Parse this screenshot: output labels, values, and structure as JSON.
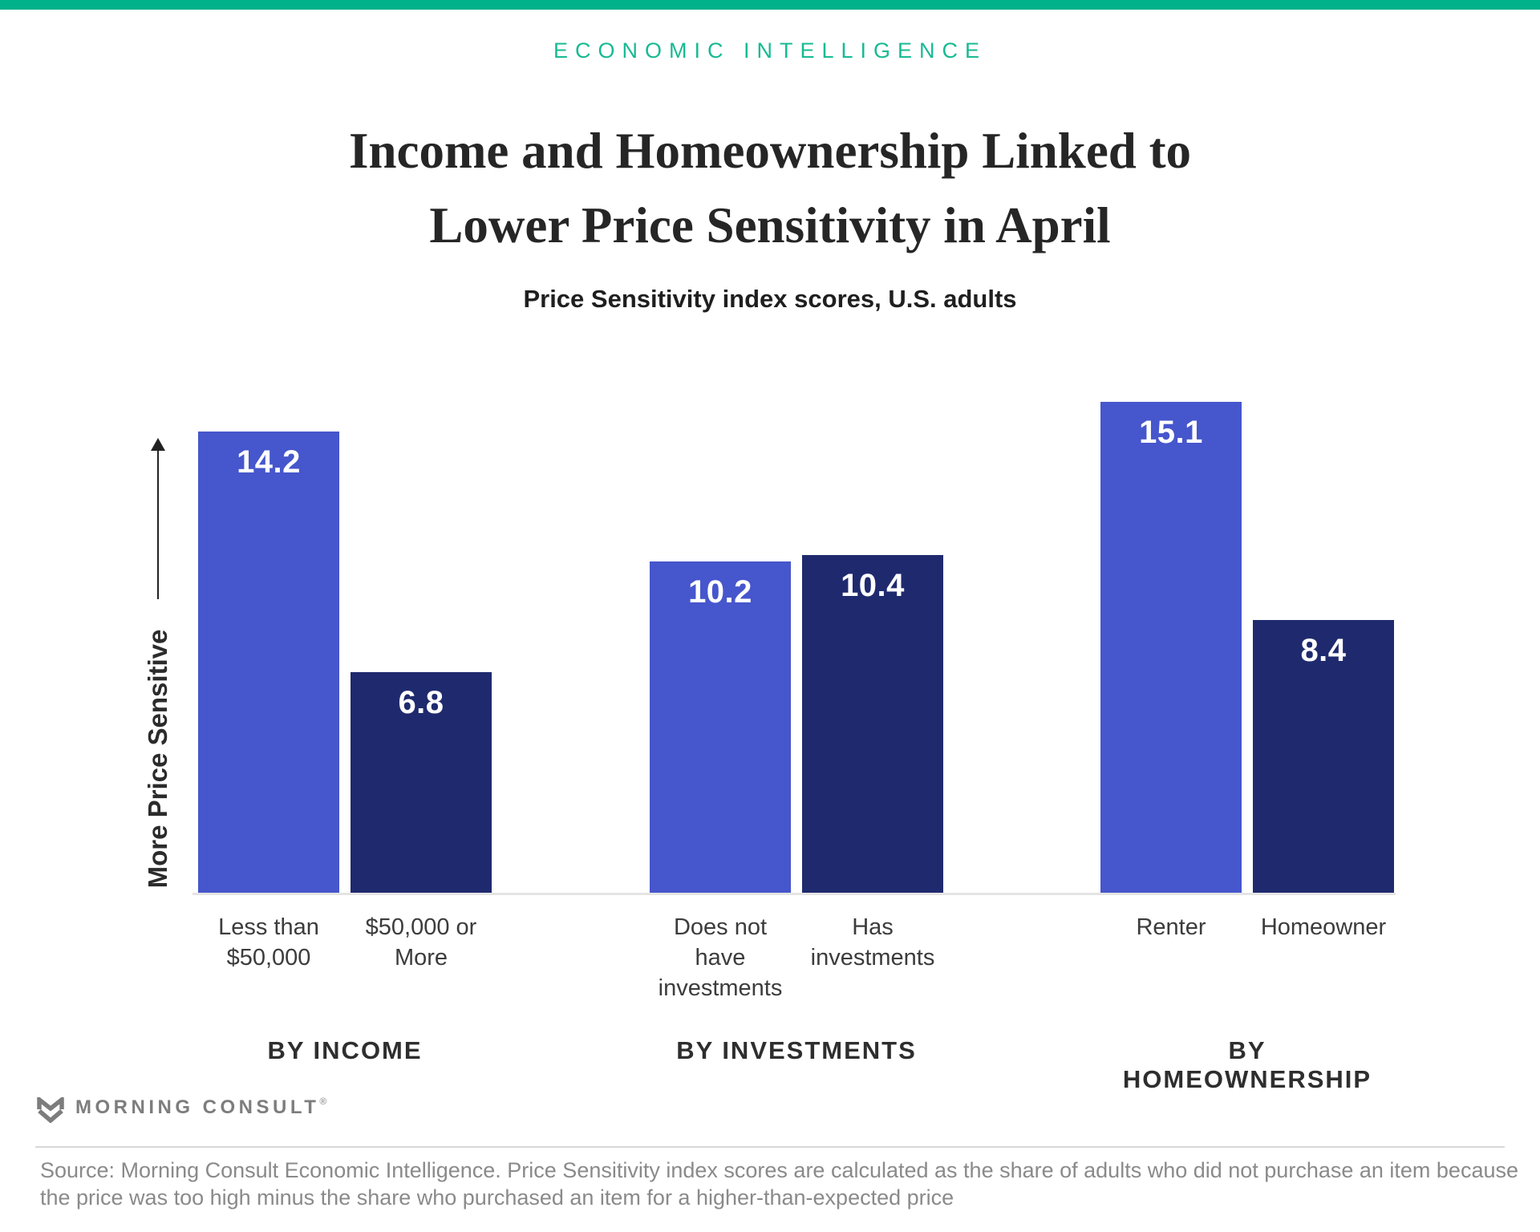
{
  "header": {
    "kicker": "ECONOMIC INTELLIGENCE",
    "title_line1": "Income and Homeownership Linked to",
    "title_line2": "Lower Price Sensitivity in April",
    "subtitle": "Price Sensitivity index scores, U.S. adults"
  },
  "chart_data": {
    "type": "bar",
    "title": "Income and Homeownership Linked to Lower Price Sensitivity in April",
    "subtitle": "Price Sensitivity index scores, U.S. adults",
    "ylabel": "More Price Sensitive",
    "xlabel": "",
    "ylim": [
      0,
      15.5
    ],
    "grid": false,
    "legend": "none",
    "bar_colors": {
      "light": "#4656CC",
      "dark": "#1F2A6E"
    },
    "groups": [
      {
        "label": "BY INCOME",
        "bars": [
          {
            "category": "Less than $50,000",
            "category_lines": [
              "Less than",
              "$50,000"
            ],
            "value": 14.2,
            "color": "light"
          },
          {
            "category": "$50,000 or More",
            "category_lines": [
              "$50,000 or",
              "More"
            ],
            "value": 6.8,
            "color": "dark"
          }
        ]
      },
      {
        "label": "BY INVESTMENTS",
        "bars": [
          {
            "category": "Does not have investments",
            "category_lines": [
              "Does not",
              "have",
              "investments"
            ],
            "value": 10.2,
            "color": "light"
          },
          {
            "category": "Has investments",
            "category_lines": [
              "Has",
              "investments"
            ],
            "value": 10.4,
            "color": "dark"
          }
        ]
      },
      {
        "label": "BY HOMEOWNERSHIP",
        "bars": [
          {
            "category": "Renter",
            "category_lines": [
              "Renter"
            ],
            "value": 15.1,
            "color": "light"
          },
          {
            "category": "Homeowner",
            "category_lines": [
              "Homeowner"
            ],
            "value": 8.4,
            "color": "dark"
          }
        ]
      }
    ]
  },
  "footer": {
    "brand": "MORNING CONSULT",
    "registered_mark": "®",
    "source_lines": [
      "Source: Morning Consult Economic Intelligence. Price Sensitivity index scores are calculated as the share of adults who did not purchase an item because",
      "the price was too high minus the share who purchased an item for a higher-than-expected price"
    ]
  },
  "colors": {
    "top_bar_teal": "#00B189",
    "kicker_teal": "#17BA93",
    "bar_light": "#4656CC",
    "bar_dark": "#1F2A6E",
    "axis_gray": "#E4E4E4"
  }
}
